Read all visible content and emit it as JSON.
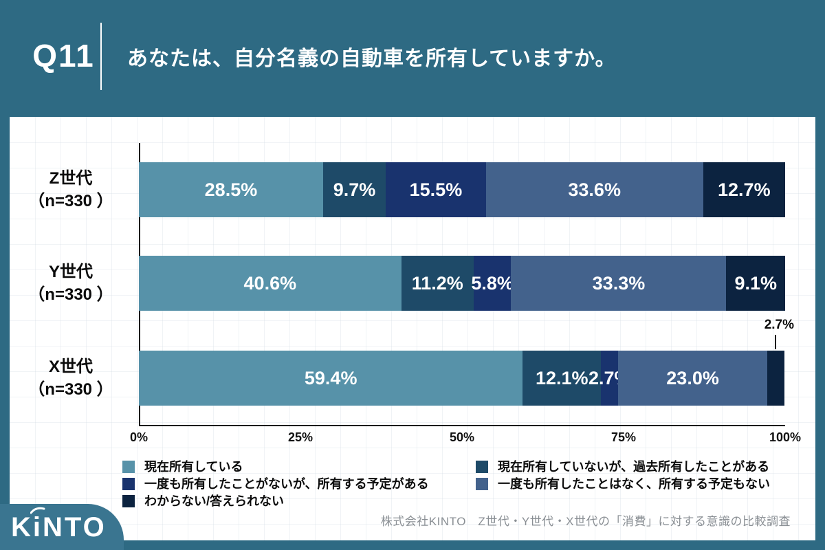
{
  "header": {
    "q_label": "Q11",
    "title": "あなたは、自分名義の自動車を所有していますか。"
  },
  "chart_data": {
    "type": "bar",
    "orientation": "horizontal",
    "stacked": true,
    "xlim": [
      0,
      100
    ],
    "value_suffix": "%",
    "grid": "faint graph-paper grid on white card",
    "legend_position": "bottom, two columns",
    "categories": [
      {
        "label": "Z世代",
        "n_label": "（n=330 ）"
      },
      {
        "label": "Y世代",
        "n_label": "（n=330 ）"
      },
      {
        "label": "X世代",
        "n_label": "（n=330 ）"
      }
    ],
    "series": [
      {
        "name": "現在所有している",
        "color": "#5792a9",
        "values": [
          28.5,
          40.6,
          59.4
        ]
      },
      {
        "name": "現在所有していないが、過去所有したことがある",
        "color": "#1e4a68",
        "values": [
          9.7,
          11.2,
          12.1
        ]
      },
      {
        "name": "一度も所有したことがないが、所有する予定がある",
        "color": "#19336e",
        "values": [
          15.5,
          5.8,
          2.7
        ]
      },
      {
        "name": "一度も所有したことはなく、所有する予定もない",
        "color": "#43628c",
        "values": [
          33.6,
          33.3,
          23.0
        ]
      },
      {
        "name": "わからない/答えられない",
        "color": "#0c2340",
        "values": [
          12.7,
          9.1,
          2.7
        ]
      }
    ],
    "x_ticks": [
      {
        "label": "0%",
        "value": 0
      },
      {
        "label": "25%",
        "value": 25
      },
      {
        "label": "50%",
        "value": 50
      },
      {
        "label": "75%",
        "value": 75
      },
      {
        "label": "100%",
        "value": 100
      }
    ],
    "callout": {
      "row_index": 2,
      "series_index": 4,
      "label": "2.7%"
    }
  },
  "footer": {
    "logo": "KINTO",
    "source": "株式会社KINTO　Z世代・Y世代・X世代の「消費」に対する意識の比較調査"
  },
  "colors": {
    "page_background": "#2e6a83",
    "card_background": "#ffffff",
    "logo_tab": "#3a7590",
    "axis": "#111111",
    "source_text": "#8a8f94"
  }
}
